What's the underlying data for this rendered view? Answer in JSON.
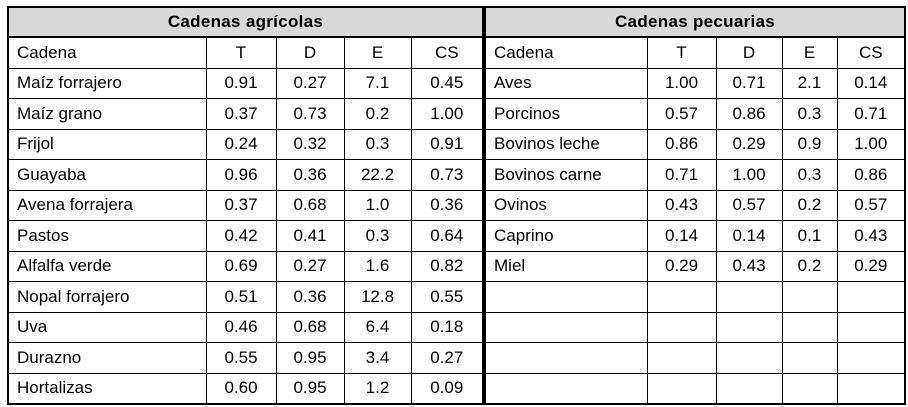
{
  "tables": [
    {
      "id": "agricolas",
      "title": "Cadenas agrícolas",
      "columns": [
        "Cadena",
        "T",
        "D",
        "E",
        "CS"
      ],
      "rows": [
        [
          "Maíz forrajero",
          "0.91",
          "0.27",
          "7.1",
          "0.45"
        ],
        [
          "Maíz grano",
          "0.37",
          "0.73",
          "0.2",
          "1.00"
        ],
        [
          "Frijol",
          "0.24",
          "0.32",
          "0.3",
          "0.91"
        ],
        [
          "Guayaba",
          "0.96",
          "0.36",
          "22.2",
          "0.73"
        ],
        [
          "Avena forrajera",
          "0.37",
          "0.68",
          "1.0",
          "0.36"
        ],
        [
          "Pastos",
          "0.42",
          "0.41",
          "0.3",
          "0.64"
        ],
        [
          "Alfalfa verde",
          "0.69",
          "0.27",
          "1.6",
          "0.82"
        ],
        [
          "Nopal forrajero",
          "0.51",
          "0.36",
          "12.8",
          "0.55"
        ],
        [
          "Uva",
          "0.46",
          "0.68",
          "6.4",
          "0.18"
        ],
        [
          "Durazno",
          "0.55",
          "0.95",
          "3.4",
          "0.27"
        ],
        [
          "Hortalizas",
          "0.60",
          "0.95",
          "1.2",
          "0.09"
        ]
      ]
    },
    {
      "id": "pecuarias",
      "title": "Cadenas pecuarias",
      "columns": [
        "Cadena",
        "T",
        "D",
        "E",
        "CS"
      ],
      "rows": [
        [
          "Aves",
          "1.00",
          "0.71",
          "2.1",
          "0.14"
        ],
        [
          "Porcinos",
          "0.57",
          "0.86",
          "0.3",
          "0.71"
        ],
        [
          "Bovinos leche",
          "0.86",
          "0.29",
          "0.9",
          "1.00"
        ],
        [
          "Bovinos carne",
          "0.71",
          "1.00",
          "0.3",
          "0.86"
        ],
        [
          "Ovinos",
          "0.43",
          "0.57",
          "0.2",
          "0.57"
        ],
        [
          "Caprino",
          "0.14",
          "0.14",
          "0.1",
          "0.43"
        ],
        [
          "Miel",
          "0.29",
          "0.43",
          "0.2",
          "0.29"
        ],
        [
          "",
          "",
          "",
          "",
          ""
        ],
        [
          "",
          "",
          "",
          "",
          ""
        ],
        [
          "",
          "",
          "",
          "",
          ""
        ],
        [
          "",
          "",
          "",
          "",
          ""
        ]
      ]
    }
  ],
  "colors": {
    "header_bg": "#d9d9d9",
    "border": "#000000",
    "text": "#000000",
    "background": "#ffffff"
  }
}
